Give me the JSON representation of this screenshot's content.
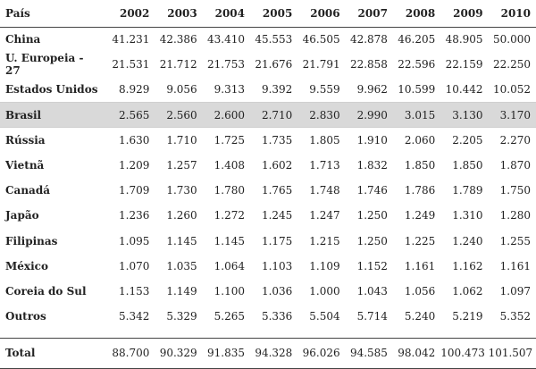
{
  "table": {
    "header": {
      "country_label": "País",
      "years": [
        "2002",
        "2003",
        "2004",
        "2005",
        "2006",
        "2007",
        "2008",
        "2009",
        "2010"
      ]
    },
    "rows": [
      {
        "country": "China",
        "values": [
          "41.231",
          "42.386",
          "43.410",
          "45.553",
          "46.505",
          "42.878",
          "46.205",
          "48.905",
          "50.000"
        ]
      },
      {
        "country": "U. Europeia - 27",
        "values": [
          "21.531",
          "21.712",
          "21.753",
          "21.676",
          "21.791",
          "22.858",
          "22.596",
          "22.159",
          "22.250"
        ]
      },
      {
        "country": "Estados Unidos",
        "values": [
          "8.929",
          "9.056",
          "9.313",
          "9.392",
          "9.559",
          "9.962",
          "10.599",
          "10.442",
          "10.052"
        ]
      },
      {
        "country": "Brasil",
        "values": [
          "2.565",
          "2.560",
          "2.600",
          "2.710",
          "2.830",
          "2.990",
          "3.015",
          "3.130",
          "3.170"
        ],
        "highlight": true
      },
      {
        "country": "Rússia",
        "values": [
          "1.630",
          "1.710",
          "1.725",
          "1.735",
          "1.805",
          "1.910",
          "2.060",
          "2.205",
          "2.270"
        ]
      },
      {
        "country": "Vietnã",
        "values": [
          "1.209",
          "1.257",
          "1.408",
          "1.602",
          "1.713",
          "1.832",
          "1.850",
          "1.850",
          "1.870"
        ]
      },
      {
        "country": "Canadá",
        "values": [
          "1.709",
          "1.730",
          "1.780",
          "1.765",
          "1.748",
          "1.746",
          "1.786",
          "1.789",
          "1.750"
        ]
      },
      {
        "country": "Japão",
        "values": [
          "1.236",
          "1.260",
          "1.272",
          "1.245",
          "1.247",
          "1.250",
          "1.249",
          "1.310",
          "1.280"
        ]
      },
      {
        "country": "Filipinas",
        "values": [
          "1.095",
          "1.145",
          "1.145",
          "1.175",
          "1.215",
          "1.250",
          "1.225",
          "1.240",
          "1.255"
        ]
      },
      {
        "country": "México",
        "values": [
          "1.070",
          "1.035",
          "1.064",
          "1.103",
          "1.109",
          "1.152",
          "1.161",
          "1.162",
          "1.161"
        ]
      },
      {
        "country": "Coreia do Sul",
        "values": [
          "1.153",
          "1.149",
          "1.100",
          "1.036",
          "1.000",
          "1.043",
          "1.056",
          "1.062",
          "1.097"
        ]
      },
      {
        "country": "Outros",
        "values": [
          "5.342",
          "5.329",
          "5.265",
          "5.336",
          "5.504",
          "5.714",
          "5.240",
          "5.219",
          "5.352"
        ]
      }
    ],
    "total": {
      "country": "Total",
      "values": [
        "88.700",
        "90.329",
        "91.835",
        "94.328",
        "96.026",
        "94.585",
        "98.042",
        "100.473",
        "101.507"
      ]
    }
  }
}
